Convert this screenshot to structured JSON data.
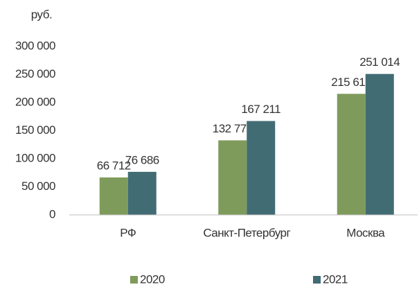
{
  "chart_data": {
    "type": "bar",
    "y_axis_label": "руб.",
    "categories": [
      "РФ",
      "Санкт-Петербург",
      "Москва"
    ],
    "series": [
      {
        "name": "2020",
        "color": "#7f9b5b",
        "values": [
          66712,
          132775,
          215615
        ],
        "value_labels": [
          "66 712",
          "132 775",
          "215 615"
        ]
      },
      {
        "name": "2021",
        "color": "#426c74",
        "values": [
          76686,
          167211,
          251014
        ],
        "value_labels": [
          "76 686",
          "167 211",
          "251 014"
        ]
      }
    ],
    "ylim": [
      0,
      300000
    ],
    "yticks": [
      0,
      {
        "value": 50000,
        "label": "50 000"
      },
      {
        "value": 100000,
        "label": "100 000"
      },
      {
        "value": 150000,
        "label": "150 000"
      },
      {
        "value": 200000,
        "label": "200 000"
      },
      {
        "value": 250000,
        "label": "250 000"
      },
      {
        "value": 300000,
        "label": "300 000"
      }
    ],
    "grid": false,
    "legend": "bottom"
  }
}
